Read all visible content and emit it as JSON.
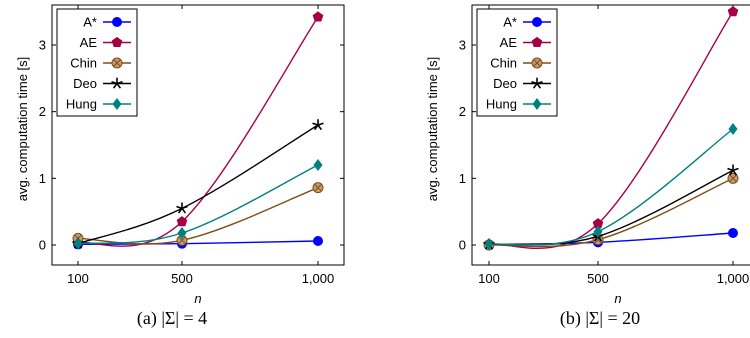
{
  "chart_data": [
    {
      "type": "line",
      "caption": "(a) |Σ| = 4",
      "xlabel": "n",
      "ylabel": "avg. computation time [s]",
      "x": [
        "100",
        "500",
        "1,000"
      ],
      "xlim": [
        100,
        1000
      ],
      "ylim": [
        -0.3,
        3.6
      ],
      "yticks": [
        "0",
        "1",
        "2",
        "3"
      ],
      "legend_position": "top-left",
      "grid": false,
      "series": [
        {
          "name": "A*",
          "marker": "circle",
          "color": "#0000ff",
          "values": [
            0.01,
            0.02,
            0.06
          ]
        },
        {
          "name": "AE",
          "marker": "pentagon",
          "color": "#a50044",
          "values": [
            0.03,
            0.35,
            3.42
          ]
        },
        {
          "name": "Chin",
          "marker": "otimes",
          "color": "#7f4d1a",
          "values": [
            0.1,
            0.07,
            0.86
          ]
        },
        {
          "name": "Deo",
          "marker": "star",
          "color": "#000000",
          "values": [
            0.02,
            0.55,
            1.8
          ]
        },
        {
          "name": "Hung",
          "marker": "diamond",
          "color": "#008080",
          "values": [
            0.02,
            0.18,
            1.2
          ]
        }
      ]
    },
    {
      "type": "line",
      "caption": "(b) |Σ| = 20",
      "xlabel": "n",
      "ylabel": "avg. computation time [s]",
      "x": [
        "100",
        "500",
        "1,000"
      ],
      "xlim": [
        100,
        1000
      ],
      "ylim": [
        -0.3,
        3.6
      ],
      "yticks": [
        "0",
        "1",
        "2",
        "3"
      ],
      "legend_position": "top-left",
      "grid": false,
      "series": [
        {
          "name": "A*",
          "marker": "circle",
          "color": "#0000ff",
          "values": [
            0.01,
            0.04,
            0.18
          ]
        },
        {
          "name": "AE",
          "marker": "pentagon",
          "color": "#a50044",
          "values": [
            0.01,
            0.32,
            3.5
          ]
        },
        {
          "name": "Chin",
          "marker": "otimes",
          "color": "#7f4d1a",
          "values": [
            0.0,
            0.08,
            1.0
          ]
        },
        {
          "name": "Deo",
          "marker": "star",
          "color": "#000000",
          "values": [
            0.01,
            0.13,
            1.12
          ]
        },
        {
          "name": "Hung",
          "marker": "diamond",
          "color": "#008080",
          "values": [
            0.01,
            0.2,
            1.74
          ]
        }
      ]
    }
  ]
}
